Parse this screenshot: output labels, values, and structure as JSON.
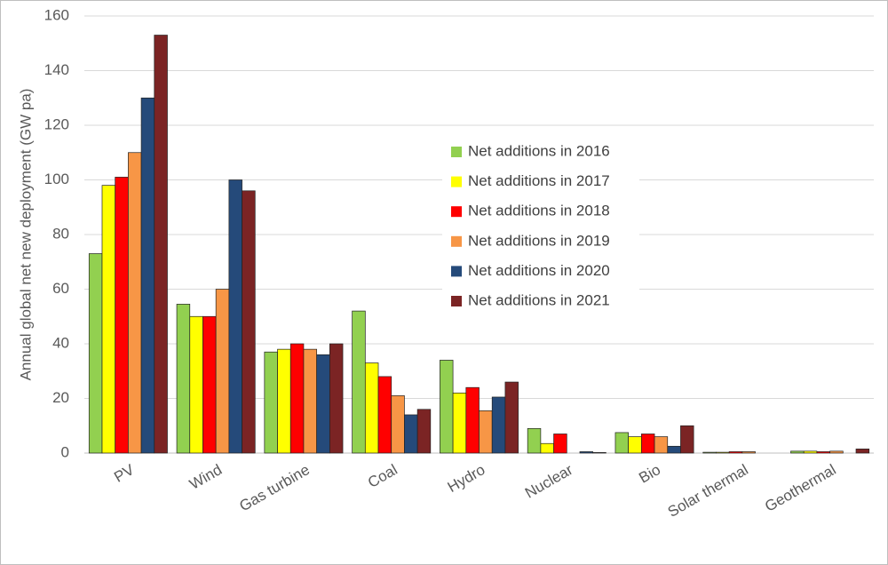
{
  "chart_data": {
    "type": "bar",
    "y_label": "Annual global net new deployment (GW pa)",
    "categories": [
      "PV",
      "Wind",
      "Gas turbine",
      "Coal",
      "Hydro",
      "Nuclear",
      "Bio",
      "Solar thermal",
      "Geothermal"
    ],
    "series": [
      {
        "name": "Net additions in 2016",
        "color": "#92d050",
        "values": [
          73,
          54.5,
          37,
          52,
          34,
          9,
          7.5,
          0.3,
          0.7
        ]
      },
      {
        "name": "Net additions in 2017",
        "color": "#ffff00",
        "values": [
          98,
          50,
          38,
          33,
          22,
          3.5,
          6,
          0.3,
          0.7
        ]
      },
      {
        "name": "Net additions in 2018",
        "color": "#ff0000",
        "values": [
          101,
          50,
          40,
          28,
          24,
          7,
          7,
          0.5,
          0.5
        ]
      },
      {
        "name": "Net additions in 2019",
        "color": "#f79646",
        "values": [
          110,
          60,
          38,
          21,
          15.5,
          0,
          6,
          0.5,
          0.7
        ]
      },
      {
        "name": "Net additions in 2020",
        "color": "#254a7a",
        "values": [
          130,
          100,
          36,
          14,
          20.5,
          0.5,
          2.5,
          0,
          0
        ]
      },
      {
        "name": "Net additions in 2021",
        "color": "#7b2424",
        "values": [
          153,
          96,
          40,
          16,
          26,
          0.2,
          10,
          0,
          1.5
        ]
      }
    ],
    "ylim": [
      0,
      160
    ],
    "yticks": [
      0,
      20,
      40,
      60,
      80,
      100,
      120,
      140,
      160
    ],
    "grid": true
  }
}
